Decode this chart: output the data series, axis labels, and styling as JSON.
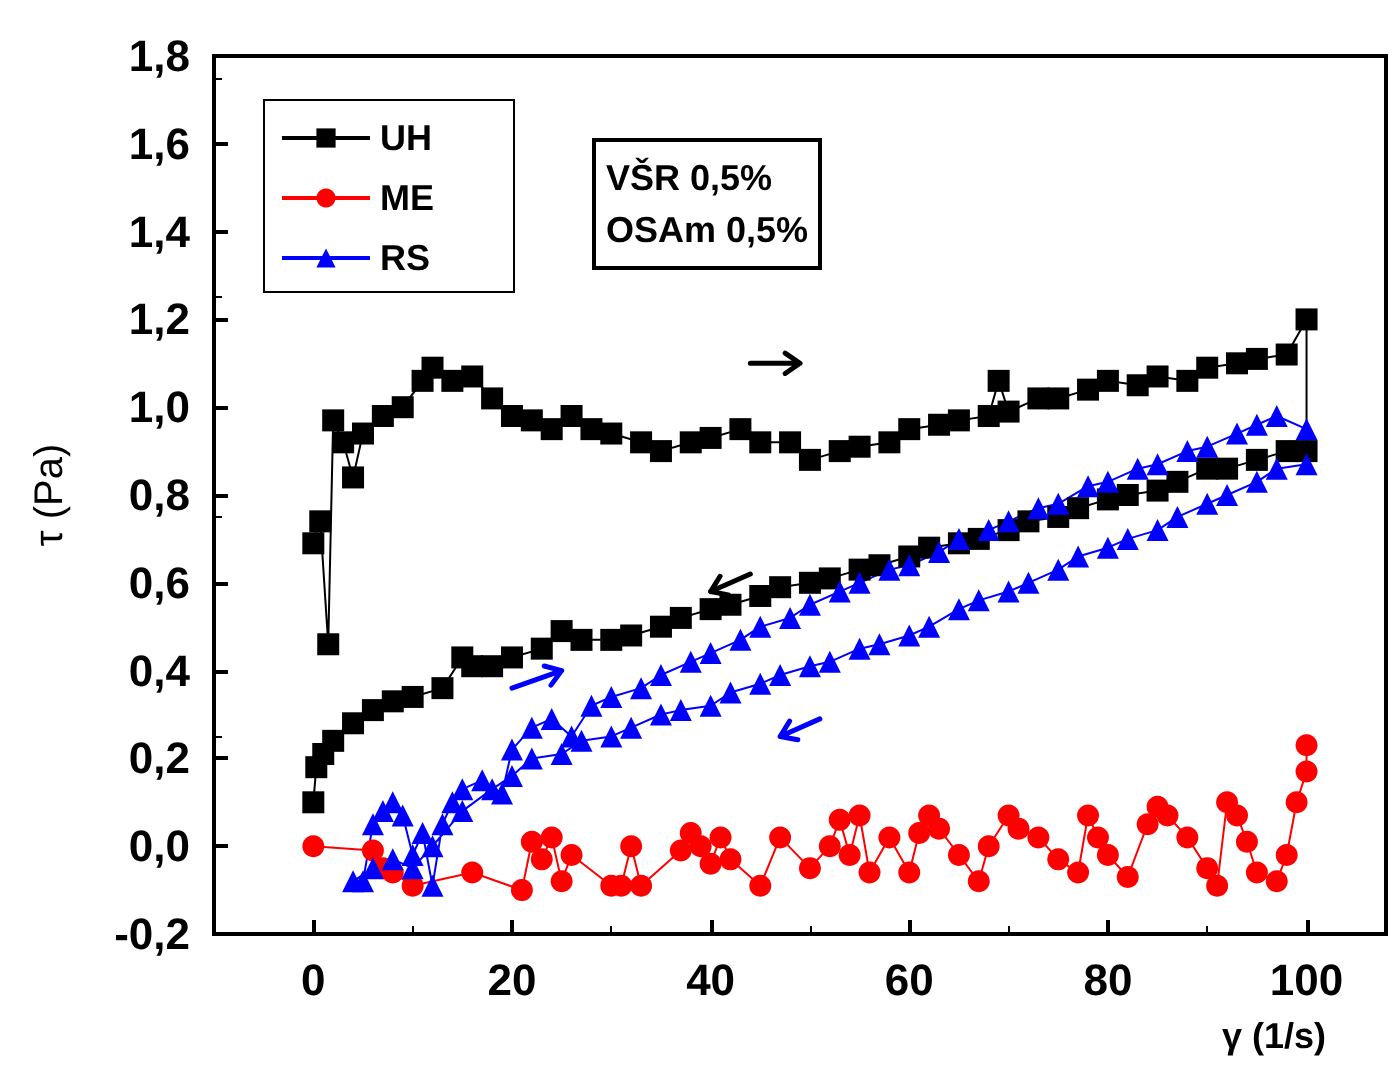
{
  "chart_data": {
    "type": "line",
    "xlabel": "γ (1/s)",
    "ylabel": "τ (Pa)",
    "annotations": [
      "VŠR 0,5%\nOSAm 0,5%"
    ],
    "xlim": [
      -10,
      108
    ],
    "xticks": [
      0,
      20,
      40,
      60,
      80,
      100
    ],
    "ylim": [
      -0.2,
      1.8
    ],
    "yticks": [
      {
        "value": -0.2,
        "label": "-0,2"
      },
      {
        "value": 0,
        "label": "0,0"
      },
      {
        "value": 0.2,
        "label": "0,2"
      },
      {
        "value": 0.4,
        "label": "0,4"
      },
      {
        "value": 0.6,
        "label": "0,6"
      },
      {
        "value": 0.8,
        "label": "0,8"
      },
      {
        "value": 1,
        "label": "1,0"
      },
      {
        "value": 1.2,
        "label": "1,2"
      },
      {
        "value": 1.4,
        "label": "1,4"
      },
      {
        "value": 1.6,
        "label": "1,6"
      },
      {
        "value": 1.8,
        "label": "1,8"
      }
    ],
    "grid": false,
    "legend": "top left",
    "line_style": "solid",
    "series": [
      {
        "name": "UH",
        "color": "#000000",
        "marker": "square",
        "x": [
          0,
          0.7,
          1.5,
          2,
          3,
          4,
          5,
          7,
          9,
          11,
          12,
          14,
          16,
          18,
          20,
          22,
          24,
          26,
          28,
          30,
          33,
          35,
          38,
          40,
          43,
          45,
          48,
          50,
          53,
          55,
          58,
          60,
          63,
          65,
          68,
          69,
          70,
          73,
          75,
          78,
          80,
          83,
          85,
          88,
          90,
          93,
          95,
          98,
          100,
          100,
          98,
          95,
          92,
          90,
          87,
          85,
          82,
          80,
          77,
          75,
          72,
          70,
          67,
          65,
          62,
          60,
          57,
          55,
          52,
          50,
          47,
          45,
          42,
          40,
          37,
          35,
          32,
          30,
          27,
          25,
          23,
          20,
          18,
          16,
          15,
          13,
          10,
          8,
          6,
          4,
          2,
          1,
          0.3,
          0
        ],
        "values": [
          0.69,
          0.74,
          0.46,
          0.97,
          0.92,
          0.84,
          0.94,
          0.98,
          1.0,
          1.06,
          1.09,
          1.06,
          1.07,
          1.02,
          0.98,
          0.97,
          0.95,
          0.98,
          0.95,
          0.94,
          0.92,
          0.9,
          0.92,
          0.93,
          0.95,
          0.92,
          0.92,
          0.88,
          0.9,
          0.91,
          0.92,
          0.95,
          0.96,
          0.97,
          0.98,
          1.06,
          0.99,
          1.02,
          1.02,
          1.04,
          1.06,
          1.05,
          1.07,
          1.06,
          1.09,
          1.1,
          1.11,
          1.12,
          1.2,
          0.9,
          0.9,
          0.88,
          0.86,
          0.86,
          0.83,
          0.81,
          0.8,
          0.79,
          0.77,
          0.75,
          0.74,
          0.72,
          0.7,
          0.69,
          0.68,
          0.66,
          0.64,
          0.63,
          0.61,
          0.6,
          0.59,
          0.57,
          0.55,
          0.54,
          0.52,
          0.5,
          0.48,
          0.47,
          0.47,
          0.49,
          0.45,
          0.43,
          0.41,
          0.41,
          0.43,
          0.36,
          0.34,
          0.33,
          0.31,
          0.28,
          0.24,
          0.21,
          0.18,
          0.1
        ]
      },
      {
        "name": "ME",
        "color": "#ff0000",
        "marker": "circle",
        "x": [
          0,
          6,
          7,
          8,
          10,
          16,
          21,
          22,
          23,
          24,
          25,
          26,
          30,
          31,
          32,
          33,
          37,
          38,
          39,
          40,
          41,
          42,
          45,
          47,
          50,
          52,
          53,
          54,
          55,
          56,
          58,
          60,
          61,
          62,
          63,
          65,
          67,
          68,
          70,
          71,
          73,
          75,
          77,
          78,
          79,
          80,
          82,
          84,
          85,
          86,
          88,
          90,
          91,
          92,
          93,
          94,
          95,
          97,
          98,
          99,
          100,
          100
        ],
        "values": [
          0,
          -0.01,
          -0.05,
          -0.06,
          -0.09,
          -0.06,
          -0.1,
          0.01,
          -0.03,
          0.02,
          -0.08,
          -0.02,
          -0.09,
          -0.09,
          0,
          -0.09,
          -0.01,
          0.03,
          0,
          -0.04,
          0.02,
          -0.03,
          -0.09,
          0.02,
          -0.05,
          0,
          0.06,
          -0.02,
          0.07,
          -0.06,
          0.02,
          -0.06,
          0.03,
          0.07,
          0.04,
          -0.02,
          -0.08,
          0,
          0.07,
          0.04,
          0.02,
          -0.03,
          -0.06,
          0.07,
          0.02,
          -0.02,
          -0.07,
          0.05,
          0.09,
          0.07,
          0.02,
          -0.05,
          -0.09,
          0.1,
          0.07,
          0.01,
          -0.06,
          -0.08,
          -0.02,
          0.1,
          0.17,
          0.23
        ]
      },
      {
        "name": "RS",
        "color": "#0000ff",
        "marker": "triangle",
        "x": [
          5,
          6,
          7,
          8,
          9,
          10,
          11,
          12,
          13,
          14,
          15,
          17,
          19,
          20,
          22,
          24,
          26,
          28,
          30,
          33,
          35,
          38,
          40,
          43,
          45,
          48,
          50,
          53,
          55,
          58,
          60,
          63,
          65,
          68,
          70,
          73,
          75,
          78,
          80,
          83,
          85,
          88,
          90,
          93,
          95,
          97,
          100,
          100,
          97,
          95,
          92,
          90,
          87,
          85,
          82,
          80,
          77,
          75,
          72,
          70,
          67,
          65,
          62,
          60,
          57,
          55,
          52,
          50,
          47,
          45,
          42,
          40,
          37,
          35,
          32,
          30,
          27,
          25,
          22,
          20,
          18,
          15,
          12,
          10,
          8,
          6,
          4
        ],
        "values": [
          -0.08,
          0.05,
          0.08,
          0.1,
          0.07,
          -0.02,
          0.03,
          -0.09,
          0.05,
          0.1,
          0.13,
          0.15,
          0.12,
          0.22,
          0.27,
          0.29,
          0.25,
          0.32,
          0.34,
          0.36,
          0.39,
          0.42,
          0.44,
          0.47,
          0.5,
          0.52,
          0.55,
          0.58,
          0.6,
          0.63,
          0.64,
          0.67,
          0.7,
          0.72,
          0.74,
          0.77,
          0.78,
          0.82,
          0.83,
          0.86,
          0.87,
          0.9,
          0.91,
          0.94,
          0.96,
          0.98,
          0.95,
          0.87,
          0.86,
          0.83,
          0.8,
          0.78,
          0.75,
          0.72,
          0.7,
          0.68,
          0.66,
          0.63,
          0.6,
          0.58,
          0.56,
          0.54,
          0.5,
          0.48,
          0.46,
          0.45,
          0.42,
          0.41,
          0.39,
          0.37,
          0.35,
          0.32,
          0.31,
          0.3,
          0.27,
          0.25,
          0.24,
          0.21,
          0.2,
          0.16,
          0.13,
          0.08,
          0,
          -0.05,
          -0.03,
          -0.05,
          -0.08
        ]
      }
    ]
  }
}
